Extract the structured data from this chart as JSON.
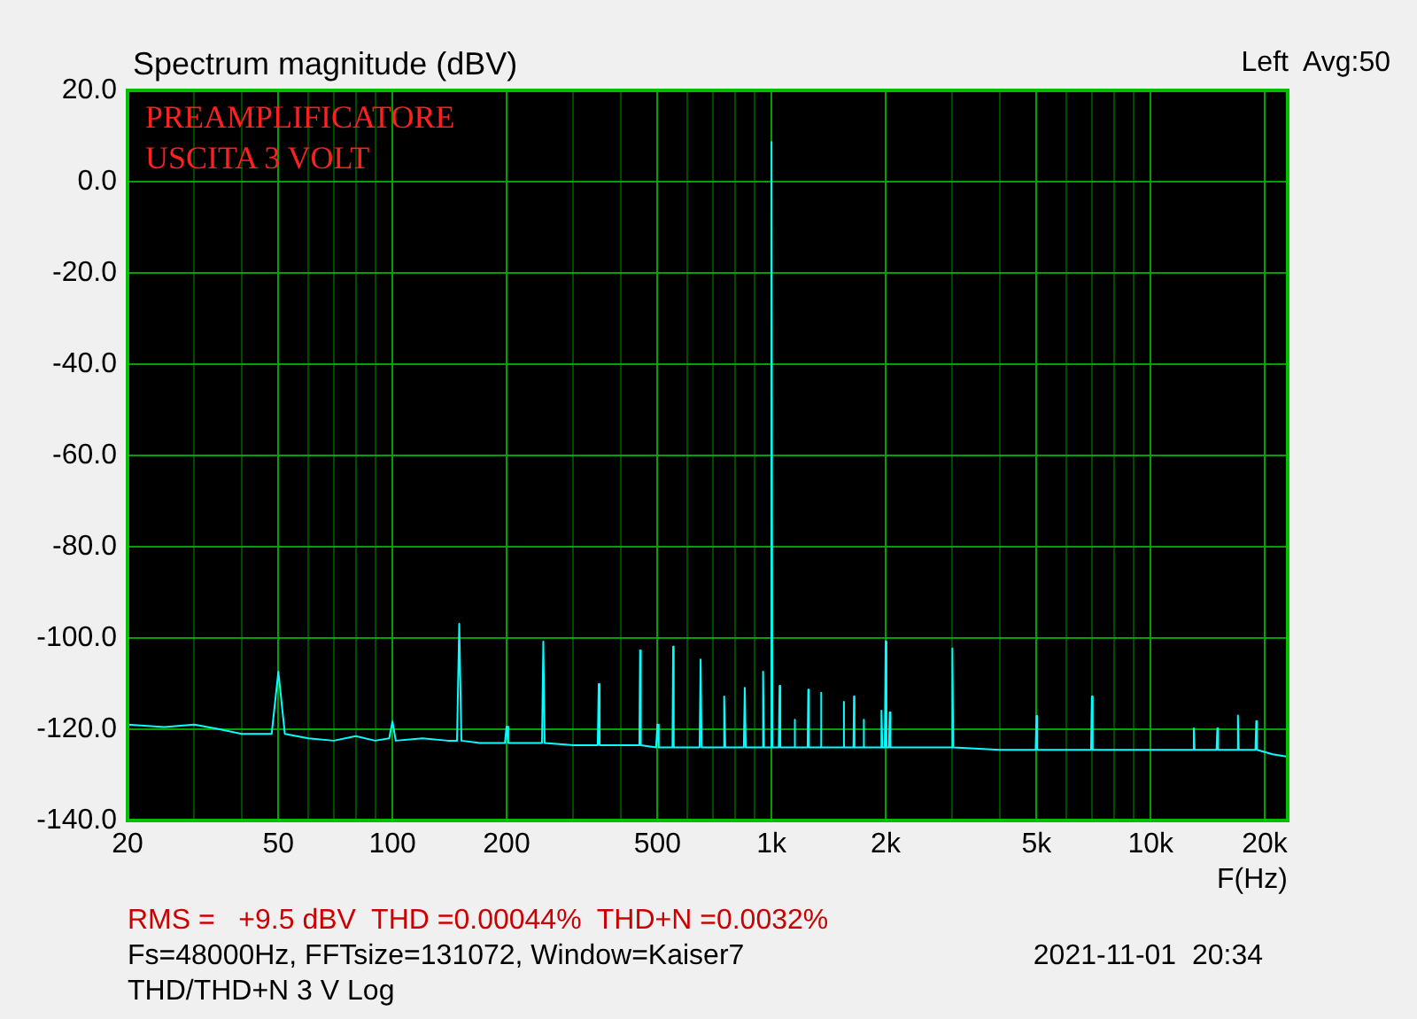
{
  "chart_data": {
    "type": "line",
    "title": "Spectrum magnitude (dBV)",
    "xlabel": "F(Hz)",
    "annotations": [
      "Left  Avg:50",
      "PREAMPLIFICATORE",
      "USCITA 3 VOLT",
      "RMS =   +9.5 dBV  THD =0.00044%  THD+N =0.0032%",
      "Fs=48000Hz, FFTsize=131072, Window=Kaiser7",
      "2021-11-01  20:34",
      "THD/THD+N 3 V Log"
    ],
    "series": [
      {
        "color": "#00ffff",
        "x": [
          20,
          25,
          30,
          35,
          40,
          45,
          48,
          50,
          52,
          60,
          70,
          80,
          90,
          98,
          100,
          102,
          120,
          140,
          148,
          150,
          152,
          170,
          190,
          198,
          200,
          202,
          230,
          248,
          250,
          252,
          300,
          348,
          350,
          352,
          400,
          448,
          450,
          452,
          496,
          500,
          504,
          548,
          550,
          552,
          600,
          646,
          650,
          654,
          745,
          750,
          755,
          845,
          850,
          855,
          945,
          950,
          955,
          995,
          1000,
          1005,
          1045,
          1050,
          1055,
          1145,
          1150,
          1155,
          1245,
          1250,
          1255,
          1345,
          1350,
          1355,
          1450,
          1545,
          1550,
          1555,
          1645,
          1650,
          1655,
          1745,
          1750,
          1755,
          1940,
          1950,
          1960,
          1990,
          2000,
          2010,
          2040,
          2050,
          2060,
          2500,
          2985,
          3000,
          3015,
          4000,
          4975,
          5000,
          5025,
          6000,
          6965,
          7000,
          7035,
          10000,
          12935,
          13000,
          13065,
          14925,
          15000,
          15075,
          16915,
          17000,
          17085,
          18905,
          19000,
          19095,
          21000,
          23000
        ],
        "values": [
          -119,
          -119.5,
          -119,
          -120,
          -121,
          -121,
          -121,
          -107.4,
          -121,
          -122,
          -122.5,
          -121.5,
          -122.5,
          -122,
          -118.3,
          -122.5,
          -122,
          -122.5,
          -122.5,
          -96.9,
          -122.5,
          -123,
          -123,
          -123,
          -119.4,
          -123,
          -123,
          -123,
          -100.8,
          -123,
          -123.5,
          -123.5,
          -110.1,
          -123.5,
          -123.5,
          -123.5,
          -102.7,
          -123.5,
          -124,
          -119,
          -124,
          -124,
          -101.9,
          -124,
          -124,
          -124,
          -104.7,
          -124,
          -124,
          -112.8,
          -124,
          -124,
          -110.9,
          -124,
          -124,
          -107.4,
          -124,
          -124,
          8.7,
          -124,
          -124,
          -110.5,
          -124,
          -124,
          -117.9,
          -124,
          -124,
          -111.3,
          -124,
          -124,
          -112,
          -124,
          -124,
          -124,
          -114,
          -124,
          -124,
          -112.8,
          -124,
          -124,
          -117.9,
          -124,
          -124,
          -115.9,
          -124,
          -124,
          -100.8,
          -124,
          -124,
          -116.3,
          -124,
          -124,
          -124,
          -102.3,
          -124,
          -124.5,
          -124.5,
          -117.1,
          -124.5,
          -124.5,
          -124.5,
          -112.8,
          -124.5,
          -124.5,
          -124.5,
          -119.8,
          -124.5,
          -124.5,
          -119.8,
          -124.5,
          -124.5,
          -117,
          -124.5,
          -124.5,
          -118.2,
          -124.5,
          -125.5,
          -126
        ]
      }
    ],
    "log": "x",
    "grid": true,
    "legend": false,
    "marker": "none",
    "line_style": "solid",
    "xlim": [
      20,
      23000
    ],
    "xticks": [
      20,
      {
        "value": 30,
        "label": null
      },
      {
        "value": 40,
        "label": null
      },
      50,
      {
        "value": 60,
        "label": null
      },
      {
        "value": 70,
        "label": null
      },
      {
        "value": 80,
        "label": null
      },
      {
        "value": 90,
        "label": null
      },
      100,
      200,
      {
        "value": 300,
        "label": null
      },
      {
        "value": 400,
        "label": null
      },
      500,
      {
        "value": 600,
        "label": null
      },
      {
        "value": 700,
        "label": null
      },
      {
        "value": 800,
        "label": null
      },
      {
        "value": 900,
        "label": null
      },
      {
        "value": 1000,
        "label": "1k"
      },
      {
        "value": 2000,
        "label": "2k"
      },
      {
        "value": 3000,
        "label": null
      },
      {
        "value": 4000,
        "label": null
      },
      {
        "value": 5000,
        "label": "5k"
      },
      {
        "value": 6000,
        "label": null
      },
      {
        "value": 7000,
        "label": null
      },
      {
        "value": 8000,
        "label": null
      },
      {
        "value": 9000,
        "label": null
      },
      {
        "value": 10000,
        "label": "10k"
      },
      {
        "value": 20000,
        "label": "20k"
      }
    ],
    "ylim": [
      -140,
      20
    ],
    "yticks": [
      {
        "value": -140,
        "label": "-140.0"
      },
      {
        "value": -120,
        "label": "-120.0"
      },
      {
        "value": -100,
        "label": "-100.0"
      },
      {
        "value": -80,
        "label": "-80.0"
      },
      {
        "value": -60,
        "label": "-60.0"
      },
      {
        "value": -40,
        "label": "-40.0"
      },
      {
        "value": -20,
        "label": "-20.0"
      },
      {
        "value": 0,
        "label": "0.0"
      },
      {
        "value": 20,
        "label": "20.0"
      }
    ]
  }
}
